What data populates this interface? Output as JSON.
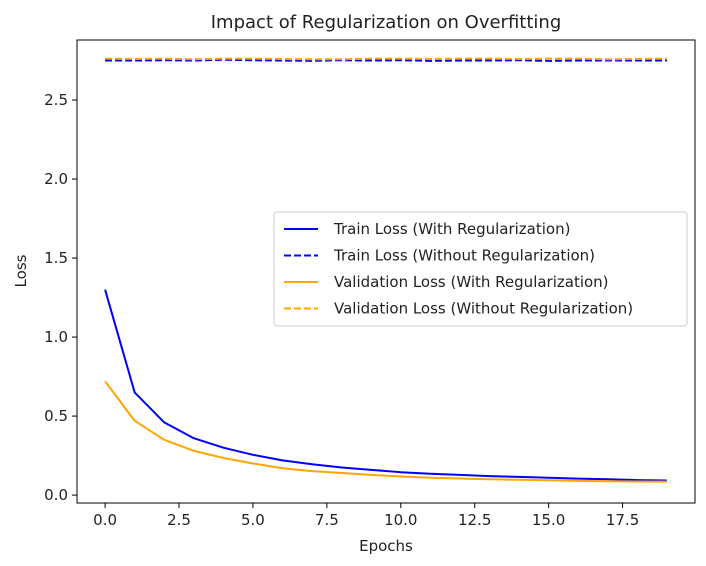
{
  "chart_data": {
    "type": "line",
    "title": "Impact of Regularization on Overfitting",
    "xlabel": "Epochs",
    "ylabel": "Loss",
    "xlim": [
      -0.95,
      19.95
    ],
    "ylim": [
      -0.05,
      2.88
    ],
    "xticks": [
      0,
      2.5,
      5,
      7.5,
      10,
      12.5,
      15,
      17.5
    ],
    "xtick_labels": [
      "0.0",
      "2.5",
      "5.0",
      "7.5",
      "10.0",
      "12.5",
      "15.0",
      "17.5"
    ],
    "yticks": [
      0,
      0.5,
      1,
      1.5,
      2,
      2.5
    ],
    "ytick_labels": [
      "0.0",
      "0.5",
      "1.0",
      "1.5",
      "2.0",
      "2.5"
    ],
    "legend_position": "center-right",
    "x": [
      0,
      1,
      2,
      3,
      4,
      5,
      6,
      7,
      8,
      9,
      10,
      11,
      12,
      13,
      14,
      15,
      16,
      17,
      18,
      19
    ],
    "series": [
      {
        "name": "Train Loss (With Regularization)",
        "color": "#0000ff",
        "dash": "solid",
        "values": [
          1.3,
          0.65,
          0.46,
          0.36,
          0.3,
          0.255,
          0.22,
          0.195,
          0.175,
          0.16,
          0.145,
          0.135,
          0.128,
          0.12,
          0.115,
          0.11,
          0.104,
          0.1,
          0.095,
          0.092
        ]
      },
      {
        "name": "Train Loss (Without Regularization)",
        "color": "#0000ff",
        "dash": "dashed",
        "values": [
          2.75,
          2.75,
          2.752,
          2.75,
          2.755,
          2.752,
          2.75,
          2.748,
          2.752,
          2.75,
          2.752,
          2.748,
          2.75,
          2.75,
          2.752,
          2.748,
          2.75,
          2.75,
          2.75,
          2.75
        ]
      },
      {
        "name": "Validation Loss (With Regularization)",
        "color": "#ffa500",
        "dash": "solid",
        "values": [
          0.72,
          0.47,
          0.35,
          0.28,
          0.235,
          0.2,
          0.17,
          0.152,
          0.14,
          0.128,
          0.118,
          0.11,
          0.105,
          0.1,
          0.097,
          0.094,
          0.09,
          0.088,
          0.086,
          0.085
        ]
      },
      {
        "name": "Validation Loss (Without Regularization)",
        "color": "#ffa500",
        "dash": "dashed",
        "values": [
          2.762,
          2.76,
          2.762,
          2.758,
          2.762,
          2.762,
          2.76,
          2.758,
          2.758,
          2.762,
          2.762,
          2.76,
          2.762,
          2.762,
          2.76,
          2.762,
          2.762,
          2.758,
          2.76,
          2.762
        ]
      }
    ]
  }
}
